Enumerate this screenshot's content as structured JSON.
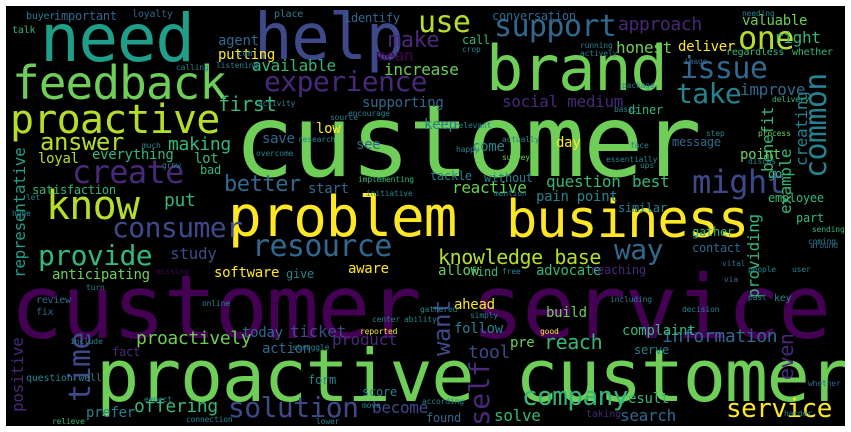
{
  "palette": {
    "background": "#000000",
    "yellow": "#fde725",
    "lime": "#b5de2b",
    "green": "#6ece58",
    "teal_green": "#35b779",
    "teal": "#1f9e89",
    "blue_teal": "#26828e",
    "steel_blue": "#31688e",
    "indigo": "#3e4989",
    "purple": "#482878",
    "deep_purple": "#440154"
  },
  "words": {
    "customer_service": "customer service",
    "customer": "customer",
    "proactive_customer": "proactive customer",
    "problem": "problem",
    "business": "business",
    "brand": "brand",
    "need": "need",
    "help": "help",
    "feedback": "feedback",
    "proactive": "proactive",
    "experience": "experience",
    "support": "support",
    "issue": "issue",
    "know": "know",
    "create": "create",
    "consumer": "consumer",
    "resource": "resource",
    "might": "might",
    "common": "common",
    "one": "one",
    "way": "way",
    "use": "use",
    "make": "make",
    "take": "take",
    "answer": "answer",
    "provide": "provide",
    "time": "time",
    "solution": "solution",
    "company": "company",
    "service": "service",
    "self": "self",
    "want": "want",
    "knowledge_base": "knowledge base",
    "better": "better",
    "first": "first",
    "approach": "approach",
    "right": "right",
    "valuable": "valuable",
    "agent": "agent",
    "putting": "putting",
    "available": "available",
    "mean": "mean",
    "increase": "increase",
    "honest": "honest",
    "deliver": "deliver",
    "social_medium": "social medium",
    "improve": "improve",
    "creating": "creating",
    "example": "example",
    "benefit": "benefit",
    "point": "point",
    "question": "question",
    "best": "best",
    "pain_point": "pain point",
    "making": "making",
    "put": "put",
    "study": "study",
    "software": "software",
    "aware": "aware",
    "allow": "allow",
    "providing": "providing",
    "proactively": "proactively",
    "ticket": "ticket",
    "product": "product",
    "tool": "tool",
    "reach": "reach",
    "information": "information",
    "even": "even",
    "offering": "offering",
    "become": "become",
    "solve": "solve",
    "search": "search",
    "result": "result",
    "complaint": "complaint",
    "representative": "representative",
    "positive": "positive",
    "anticipating": "anticipating",
    "loyal": "loyal",
    "satisfaction": "satisfaction",
    "everything": "everything",
    "lot": "lot",
    "reactive": "reactive",
    "tackle": "tackle",
    "without": "without",
    "important": "important",
    "conversation": "conversation",
    "identify": "identify",
    "supporting": "supporting",
    "keep": "keep",
    "come": "come",
    "day": "day",
    "low": "low",
    "save": "save",
    "see": "see",
    "start": "start",
    "similar": "similar",
    "employee": "employee",
    "go": "go",
    "part": "part",
    "contact": "contact",
    "gather": "gather",
    "advocate": "advocate",
    "reaching": "reaching",
    "find": "find",
    "give": "give",
    "ahead": "ahead",
    "build": "build",
    "follow": "follow",
    "pre": "pre",
    "today": "today",
    "action": "action",
    "form": "form",
    "prefer": "prefer",
    "found": "found",
    "score": "score",
    "serve": "serve",
    "message": "message",
    "bad": "bad",
    "fact": "fact",
    "review": "review",
    "fix": "fix",
    "question_well": "question well",
    "buyer": "buyer",
    "talk": "talk",
    "loyalty": "loyalty",
    "place": "place",
    "call": "call",
    "actually": "actually",
    "research": "research",
    "diner": "diner",
    "delivery": "delivery",
    "missing": "missing",
    "key": "key",
    "user": "user",
    "harder": "harder",
    "whether": "whether",
    "taking": "taking",
    "struggle": "struggle",
    "reported": "reported",
    "center": "center",
    "online": "online",
    "gathered": "gathered",
    "turn": "turn",
    "relieve": "relieve",
    "expect": "expect",
    "grow": "grow",
    "much": "much",
    "huge": "huge",
    "let": "let",
    "face": "face",
    "step": "step",
    "process": "process",
    "vital": "vital",
    "people": "people",
    "via": "via",
    "past": "past",
    "decision": "decision",
    "ability": "ability",
    "simply": "simply",
    "good": "good",
    "including": "including",
    "according": "according",
    "move": "move",
    "lower": "lower",
    "listening": "listening",
    "calling": "calling",
    "activity": "activity",
    "implementing": "implementing",
    "happy": "happy",
    "survey": "survey",
    "regardless": "regardless",
    "sending": "sending",
    "around": "around",
    "running": "running",
    "actively": "actively",
    "needing": "needing",
    "essentially": "essentially",
    "mention": "mention",
    "ups": "ups",
    "discus": "discus",
    "crop": "crop",
    "basic": "basic",
    "package": "package",
    "free": "free",
    "overcome": "overcome",
    "initiative": "initiative",
    "source": "source",
    "connection": "connection",
    "include": "include",
    "image": "image",
    "com": "com",
    "relevant": "relevant",
    "encourage": "encourage",
    "coming": "coming"
  }
}
